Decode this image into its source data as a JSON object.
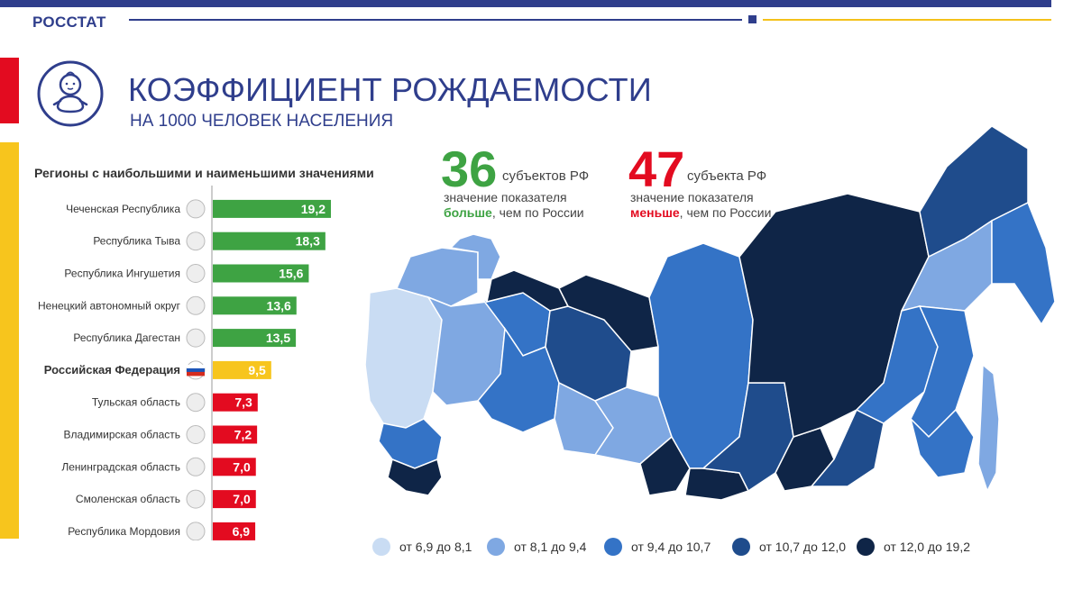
{
  "header": {
    "brand": "РОССТАТ"
  },
  "title": "КОЭФФИЦИЕНТ РОЖДАЕМОСТИ",
  "subtitle": "НА 1000 ЧЕЛОВЕК НАСЕЛЕНИЯ",
  "colors": {
    "brand_blue": "#2f3e8c",
    "accent_red": "#e30b20",
    "accent_yellow": "#f7c51d",
    "bar_green": "#3ea343",
    "bar_yellow": "#f7c51d",
    "bar_red": "#e30b20"
  },
  "stats": {
    "above": {
      "number": "36",
      "unit": "субъектов РФ",
      "line1": "значение показателя",
      "emph": "больше",
      "rest": ", чем по России"
    },
    "below": {
      "number": "47",
      "unit": "субъекта РФ",
      "line1": "значение показателя",
      "emph": "меньше",
      "rest": ", чем по России"
    }
  },
  "chart_data": {
    "type": "bar",
    "orientation": "horizontal",
    "title": "Регионы с наибольшими и наименьшими значениями",
    "categories": [
      "Чеченская Республика",
      "Республика Тыва",
      "Республика Ингушетия",
      "Ненецкий автономный округ",
      "Республика Дагестан",
      "Российская Федерация",
      "Тульская область",
      "Владимирская область",
      "Ленинградская область",
      "Смоленская область",
      "Республика Мордовия"
    ],
    "values": [
      19.2,
      18.3,
      15.6,
      13.6,
      13.5,
      9.5,
      7.3,
      7.2,
      7.0,
      7.0,
      6.9
    ],
    "value_labels": [
      "19,2",
      "18,3",
      "15,6",
      "13,6",
      "13,5",
      "9,5",
      "7,3",
      "7,2",
      "7,0",
      "7,0",
      "6,9"
    ],
    "groups": [
      "top",
      "top",
      "top",
      "top",
      "top",
      "national",
      "bottom",
      "bottom",
      "bottom",
      "bottom",
      "bottom"
    ],
    "xlim": [
      0,
      19.2
    ]
  },
  "map_legend": [
    {
      "label": "от 6,9 до 8,1",
      "color": "#c9dcf3"
    },
    {
      "label": "от 8,1 до 9,4",
      "color": "#7fa8e2"
    },
    {
      "label": "от 9,4 до 10,7",
      "color": "#3473c6"
    },
    {
      "label": "от 10,7 до 12,0",
      "color": "#1f4c8c"
    },
    {
      "label": "от 12,0 до 19,2",
      "color": "#0f2547"
    }
  ]
}
